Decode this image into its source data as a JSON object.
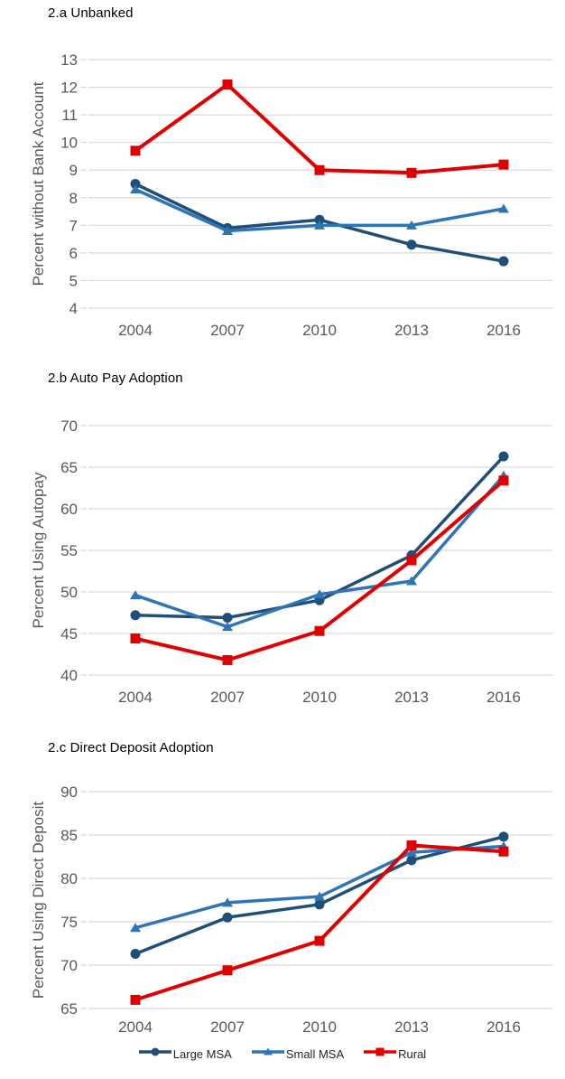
{
  "figure": {
    "background": "#ffffff",
    "text_color_axis": "#595959",
    "gridline_color": "#D9D9D9"
  },
  "legend": {
    "position": "bottom",
    "items": [
      {
        "label": "Large MSA",
        "color": "#1F4E79",
        "marker": "circle"
      },
      {
        "label": "Small MSA",
        "color": "#2E75B6",
        "marker": "triangle"
      },
      {
        "label": "Rural",
        "color": "#E00000",
        "marker": "square"
      }
    ]
  },
  "chart_data": [
    {
      "type": "line",
      "title": "2.a Unbanked",
      "xlabel": "",
      "ylabel": "Percent without Bank Account",
      "categories": [
        "2004",
        "2007",
        "2010",
        "2013",
        "2016"
      ],
      "ylim": [
        4,
        13
      ],
      "yticks": [
        4,
        5,
        6,
        7,
        8,
        9,
        10,
        11,
        12,
        13
      ],
      "grid": "horizontal",
      "legend_position": "none",
      "series": [
        {
          "name": "Large MSA",
          "marker": "circle",
          "color": "#1F4E79",
          "values": [
            8.5,
            6.9,
            7.2,
            6.3,
            5.7
          ]
        },
        {
          "name": "Small MSA",
          "marker": "triangle",
          "color": "#2E75B6",
          "values": [
            8.3,
            6.8,
            7.0,
            7.0,
            7.6
          ]
        },
        {
          "name": "Rural",
          "marker": "square",
          "color": "#E00000",
          "values": [
            9.7,
            12.1,
            9.0,
            8.9,
            9.2
          ]
        }
      ]
    },
    {
      "type": "line",
      "title": "2.b Auto Pay Adoption",
      "xlabel": "",
      "ylabel": "Percent Using Autopay",
      "categories": [
        "2004",
        "2007",
        "2010",
        "2013",
        "2016"
      ],
      "ylim": [
        40,
        70
      ],
      "yticks": [
        40,
        45,
        50,
        55,
        60,
        65,
        70
      ],
      "grid": "horizontal",
      "legend_position": "none",
      "series": [
        {
          "name": "Large MSA",
          "marker": "circle",
          "color": "#1F4E79",
          "values": [
            47.2,
            46.9,
            49.0,
            54.4,
            66.3
          ]
        },
        {
          "name": "Small MSA",
          "marker": "triangle",
          "color": "#2E75B6",
          "values": [
            49.6,
            45.8,
            49.7,
            51.3,
            64.0
          ]
        },
        {
          "name": "Rural",
          "marker": "square",
          "color": "#E00000",
          "values": [
            44.4,
            41.8,
            45.3,
            53.8,
            63.4
          ]
        }
      ]
    },
    {
      "type": "line",
      "title": "2.c Direct Deposit Adoption",
      "xlabel": "",
      "ylabel": "Percent Using Direct Deposit",
      "categories": [
        "2004",
        "2007",
        "2010",
        "2013",
        "2016"
      ],
      "ylim": [
        65,
        90
      ],
      "yticks": [
        65,
        70,
        75,
        80,
        85,
        90
      ],
      "grid": "horizontal",
      "legend_position": "bottom",
      "series": [
        {
          "name": "Large MSA",
          "marker": "circle",
          "color": "#1F4E79",
          "values": [
            71.3,
            75.5,
            77.0,
            82.1,
            84.8
          ]
        },
        {
          "name": "Small MSA",
          "marker": "triangle",
          "color": "#2E75B6",
          "values": [
            74.3,
            77.2,
            77.9,
            83.0,
            83.7
          ]
        },
        {
          "name": "Rural",
          "marker": "square",
          "color": "#E00000",
          "values": [
            66.0,
            69.4,
            72.8,
            83.8,
            83.1
          ]
        }
      ]
    }
  ]
}
